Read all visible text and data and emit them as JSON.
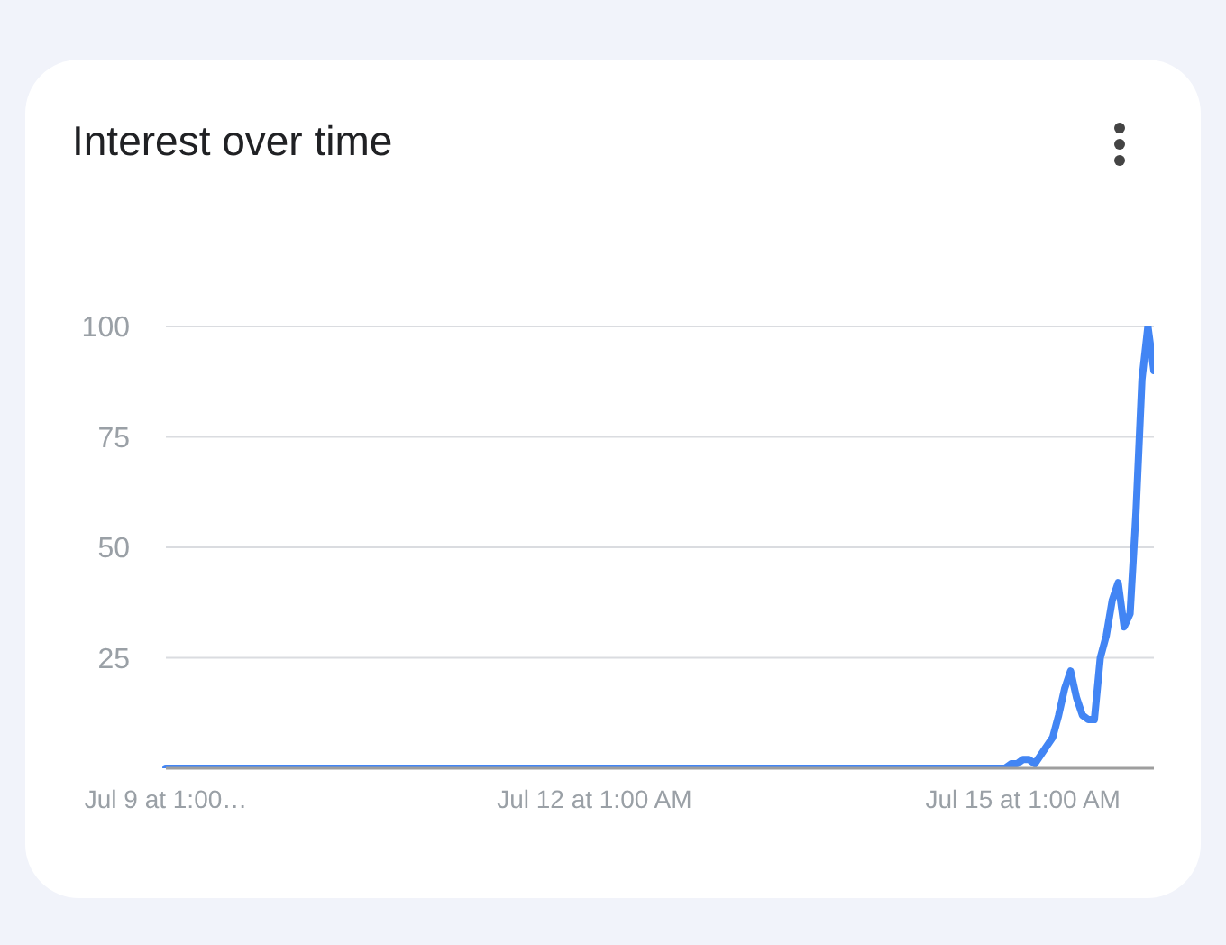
{
  "chart_data": {
    "type": "line",
    "title": "Interest over time",
    "categories": [
      "Jul 9 at 1:00…",
      null,
      null,
      null,
      null,
      null,
      null,
      null,
      null,
      null,
      null,
      null,
      null,
      null,
      null,
      null,
      null,
      null,
      null,
      null,
      null,
      null,
      null,
      null,
      null,
      null,
      null,
      null,
      null,
      null,
      null,
      null,
      null,
      null,
      null,
      null,
      null,
      null,
      null,
      null,
      null,
      null,
      null,
      null,
      null,
      null,
      null,
      null,
      null,
      null,
      null,
      null,
      null,
      null,
      null,
      null,
      null,
      null,
      null,
      null,
      null,
      null,
      null,
      null,
      null,
      null,
      null,
      null,
      null,
      null,
      null,
      null,
      "Jul 12 at 1:00 AM",
      null,
      null,
      null,
      null,
      null,
      null,
      null,
      null,
      null,
      null,
      null,
      null,
      null,
      null,
      null,
      null,
      null,
      null,
      null,
      null,
      null,
      null,
      null,
      null,
      null,
      null,
      null,
      null,
      null,
      null,
      null,
      null,
      null,
      null,
      null,
      null,
      null,
      null,
      null,
      null,
      null,
      null,
      null,
      null,
      null,
      null,
      null,
      null,
      null,
      null,
      null,
      null,
      null,
      null,
      null,
      null,
      null,
      null,
      null,
      null,
      null,
      null,
      null,
      null,
      null,
      null,
      null,
      null,
      null,
      null,
      null,
      "Jul 15 at 1:00 AM",
      null,
      null,
      null,
      null,
      null,
      null,
      null,
      null,
      null,
      null,
      null,
      null,
      null,
      null,
      null,
      null,
      null,
      null,
      null,
      null,
      null,
      null
    ],
    "series": [
      {
        "color": "#4285f4",
        "values": [
          0,
          0,
          0,
          0,
          0,
          0,
          0,
          0,
          0,
          0,
          0,
          0,
          0,
          0,
          0,
          0,
          0,
          0,
          0,
          0,
          0,
          0,
          0,
          0,
          0,
          0,
          0,
          0,
          0,
          0,
          0,
          0,
          0,
          0,
          0,
          0,
          0,
          0,
          0,
          0,
          0,
          0,
          0,
          0,
          0,
          0,
          0,
          0,
          0,
          0,
          0,
          0,
          0,
          0,
          0,
          0,
          0,
          0,
          0,
          0,
          0,
          0,
          0,
          0,
          0,
          0,
          0,
          0,
          0,
          0,
          0,
          0,
          0,
          0,
          0,
          0,
          0,
          0,
          0,
          0,
          0,
          0,
          0,
          0,
          0,
          0,
          0,
          0,
          0,
          0,
          0,
          0,
          0,
          0,
          0,
          0,
          0,
          0,
          0,
          0,
          0,
          0,
          0,
          0,
          0,
          0,
          0,
          0,
          0,
          0,
          0,
          0,
          0,
          0,
          0,
          0,
          0,
          0,
          0,
          0,
          0,
          0,
          0,
          0,
          0,
          0,
          0,
          0,
          0,
          0,
          0,
          0,
          0,
          0,
          0,
          0,
          0,
          0,
          0,
          0,
          0,
          0,
          1,
          1,
          2,
          2,
          1,
          3,
          5,
          7,
          12,
          18,
          22,
          16,
          12,
          11,
          11,
          25,
          30,
          38,
          42,
          32,
          35,
          58,
          88,
          100,
          90
        ]
      }
    ],
    "ylim": [
      0,
      100
    ],
    "yticks": [
      25,
      50,
      75,
      100
    ],
    "grid": "y",
    "marker": "none",
    "line_style": "solid"
  }
}
